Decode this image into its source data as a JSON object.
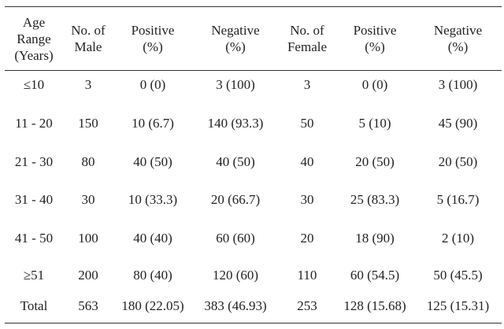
{
  "table": {
    "headers": [
      "Age\nRange\n(Years)",
      "No. of\nMale",
      "Positive\n(%)",
      "Negative\n(%)",
      "No. of\nFemale",
      "Positive\n(%)",
      "Negative\n(%)"
    ],
    "rows": [
      [
        "≤10",
        "3",
        "0 (0)",
        "3 (100)",
        "3",
        "0 (0)",
        "3 (100)"
      ],
      [
        "11 - 20",
        "150",
        "10 (6.7)",
        "140 (93.3)",
        "50",
        "5 (10)",
        "45 (90)"
      ],
      [
        "21 - 30",
        "80",
        "40 (50)",
        "40 (50)",
        "40",
        "20 (50)",
        "20 (50)"
      ],
      [
        "31 - 40",
        "30",
        "10 (33.3)",
        "20 (66.7)",
        "30",
        "25 (83.3)",
        "5 (16.7)"
      ],
      [
        "41 - 50",
        "100",
        "40 (40)",
        "60 (60)",
        "20",
        "18 (90)",
        "2 (10)"
      ],
      [
        "≥51",
        "200",
        "80 (40)",
        "120 (60)",
        "110",
        "60 (54.5)",
        "50 (45.5)"
      ],
      [
        "Total",
        "563",
        "180 (22.05)",
        "383 (46.93)",
        "253",
        "128 (15.68)",
        "125 (15.31)"
      ]
    ]
  }
}
